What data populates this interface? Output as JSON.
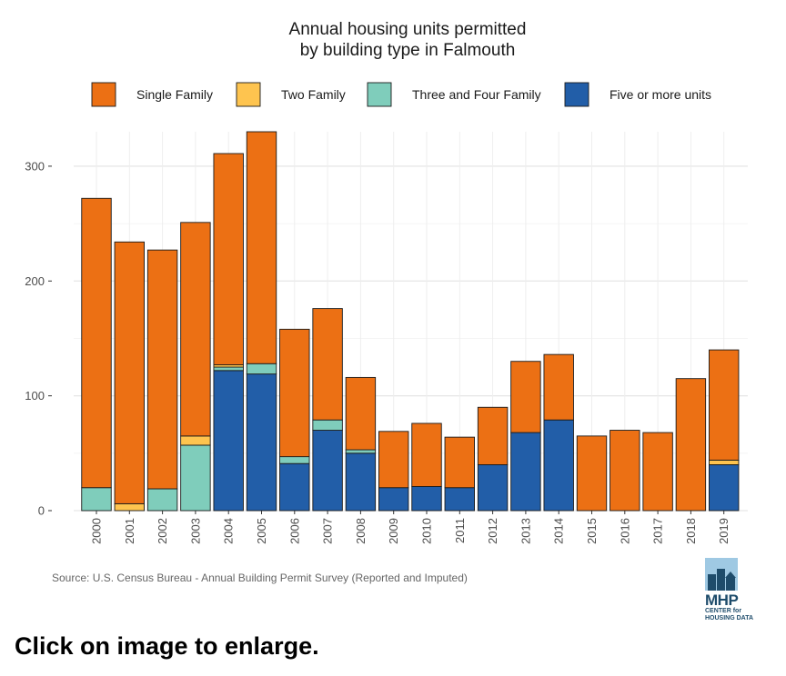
{
  "chart_data": {
    "type": "bar",
    "stacked": true,
    "title": [
      "Annual housing units permitted",
      "by building type in Falmouth"
    ],
    "xlabel": "",
    "ylabel": "",
    "ylim": [
      0,
      330
    ],
    "yticks": [
      0,
      100,
      200,
      300
    ],
    "grid": true,
    "legend_position": "top",
    "categories": [
      "2000",
      "2001",
      "2002",
      "2003",
      "2004",
      "2005",
      "2006",
      "2007",
      "2008",
      "2009",
      "2010",
      "2011",
      "2012",
      "2013",
      "2014",
      "2015",
      "2016",
      "2017",
      "2018",
      "2019"
    ],
    "series": [
      {
        "name": "Five or more units",
        "color": "#225ea8",
        "values": [
          0,
          0,
          0,
          0,
          122,
          119,
          41,
          70,
          50,
          20,
          21,
          20,
          40,
          68,
          79,
          0,
          0,
          0,
          0,
          40
        ]
      },
      {
        "name": "Three and Four Family",
        "color": "#7fcdbb",
        "values": [
          20,
          0,
          19,
          57,
          3,
          9,
          6,
          9,
          3,
          0,
          0,
          0,
          0,
          0,
          0,
          0,
          0,
          0,
          0,
          0
        ]
      },
      {
        "name": "Two Family",
        "color": "#fec44f",
        "values": [
          0,
          6,
          0,
          8,
          2,
          0,
          0,
          0,
          0,
          0,
          0,
          0,
          0,
          0,
          0,
          0,
          0,
          0,
          0,
          4
        ]
      },
      {
        "name": "Single Family",
        "color": "#ec7014",
        "values": [
          252,
          228,
          208,
          186,
          184,
          202,
          111,
          97,
          63,
          49,
          55,
          44,
          50,
          62,
          57,
          65,
          70,
          68,
          115,
          96
        ]
      }
    ],
    "legend_order": [
      "Single Family",
      "Two Family",
      "Three and Four Family",
      "Five or more units"
    ],
    "source": "Source: U.S. Census Bureau - Annual Building Permit Survey (Reported and Imputed)"
  },
  "logo": {
    "mark": "MHP",
    "sub_line1": "CENTER for",
    "sub_line2": "HOUSING DATA"
  },
  "caption": "Click on image to enlarge."
}
